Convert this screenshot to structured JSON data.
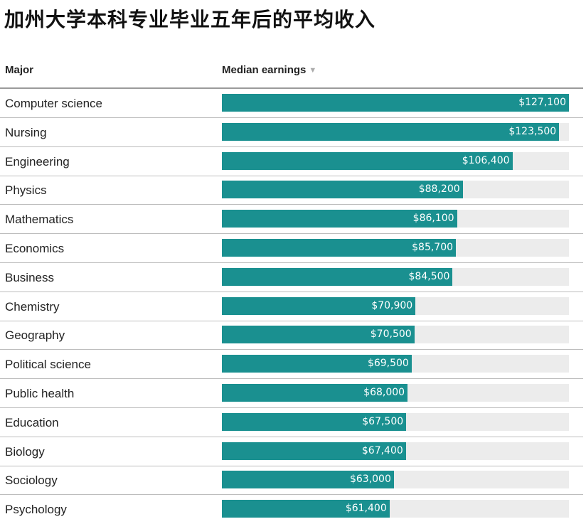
{
  "title": "加州大学本科专业毕业五年后的平均收入",
  "header": {
    "major_label": "Major",
    "earnings_label": "Median earnings",
    "sort_icon": "sort-down-triangle-icon"
  },
  "colors": {
    "bar": "#1a9090",
    "track": "#ececec"
  },
  "chart_data": {
    "type": "bar",
    "orientation": "horizontal",
    "xlim": [
      0,
      127100
    ],
    "categories": [
      "Computer science",
      "Nursing",
      "Engineering",
      "Physics",
      "Mathematics",
      "Economics",
      "Business",
      "Chemistry",
      "Geography",
      "Political science",
      "Public health",
      "Education",
      "Biology",
      "Sociology",
      "Psychology"
    ],
    "values": [
      127100,
      123500,
      106400,
      88200,
      86100,
      85700,
      84500,
      70900,
      70500,
      69500,
      68000,
      67500,
      67400,
      63000,
      61400
    ],
    "value_labels": [
      "$127,100",
      "$123,500",
      "$106,400",
      "$88,200",
      "$86,100",
      "$85,700",
      "$84,500",
      "$70,900",
      "$70,500",
      "$69,500",
      "$68,000",
      "$67,500",
      "$67,400",
      "$63,000",
      "$61,400"
    ]
  }
}
